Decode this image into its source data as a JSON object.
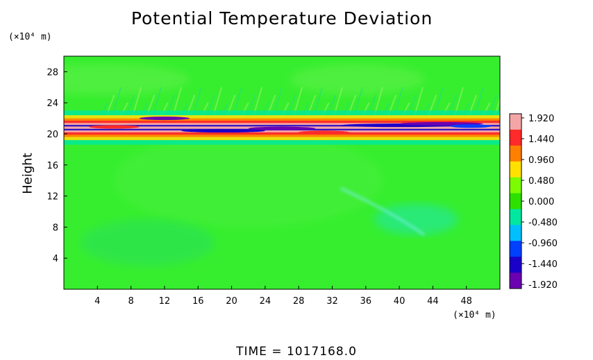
{
  "chart_data": {
    "type": "heatmap",
    "title": "Potential Temperature Deviation",
    "ylabel": "Height",
    "xlabel": "",
    "x_unit": "(×10⁴ m)",
    "y_unit": "(×10⁴ m)",
    "xlim": [
      0,
      52
    ],
    "ylim": [
      0,
      30
    ],
    "x_ticks": [
      4,
      8,
      12,
      16,
      20,
      24,
      28,
      32,
      36,
      40,
      44,
      48
    ],
    "y_ticks": [
      4,
      8,
      12,
      16,
      20,
      24,
      28
    ],
    "colorbar": {
      "ticks": [
        "1.920",
        "1.440",
        "0.960",
        "0.480",
        "0.000",
        "-0.480",
        "-0.960",
        "-1.440",
        "-1.920"
      ],
      "range": [
        -1.92,
        1.92
      ],
      "colors": [
        "#f4a6a6",
        "#ff2a2a",
        "#ff7f00",
        "#ffe100",
        "#7cfc00",
        "#2de000",
        "#00e8a0",
        "#00bfff",
        "#0040ff",
        "#1a00c8",
        "#6a00b0"
      ]
    },
    "field": {
      "background": "#36ee2e",
      "band_center_height": 20.8,
      "band_x_range": [
        0,
        52
      ]
    },
    "time_label": "TIME  =  1017168.0"
  }
}
